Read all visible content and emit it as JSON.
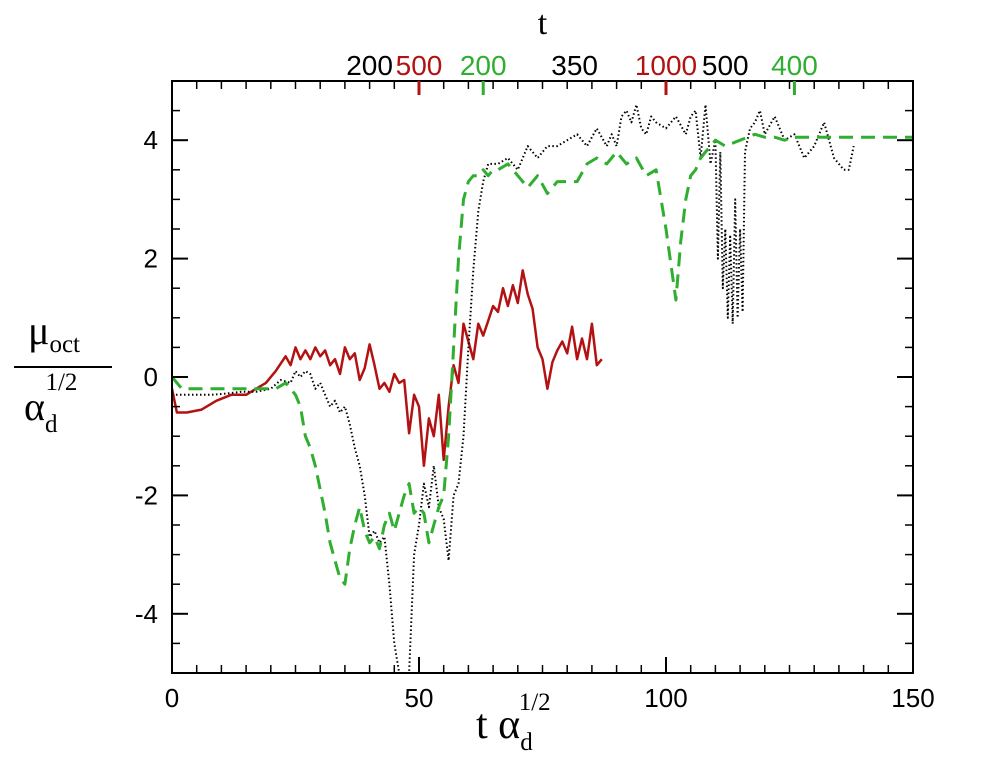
{
  "chart_data": {
    "type": "line",
    "title": "",
    "top_axis_label": "t",
    "xlabel_main": "t α",
    "xlabel_sub": "d",
    "xlabel_sup": "1/2",
    "ylabel_num_main": "μ",
    "ylabel_num_sub": "oct",
    "ylabel_den_main": "α",
    "ylabel_den_sub": "d",
    "ylabel_den_sup": "1/2",
    "xlim": [
      0,
      150
    ],
    "ylim": [
      -5,
      5
    ],
    "x_ticks": [
      0,
      50,
      100,
      150
    ],
    "y_ticks": [
      -4,
      -2,
      0,
      2,
      4
    ],
    "grid": false,
    "colors": {
      "black": "#000000",
      "red": "#b31212",
      "green": "#2fae2f"
    },
    "top_axis": [
      {
        "label": "200",
        "color": "black",
        "at": 40.0,
        "tick": false
      },
      {
        "label": "500",
        "color": "red",
        "at": 50.0,
        "tick": true
      },
      {
        "label": "200",
        "color": "green",
        "at": 63.0,
        "tick": true
      },
      {
        "label": "350",
        "color": "black",
        "at": 81.5,
        "tick": false
      },
      {
        "label": "1000",
        "color": "red",
        "at": 100.0,
        "tick": true
      },
      {
        "label": "500",
        "color": "black",
        "at": 112.0,
        "tick": false
      },
      {
        "label": "400",
        "color": "green",
        "at": 126.0,
        "tick": true
      }
    ],
    "series": [
      {
        "color": "red",
        "style": "solid",
        "x": [
          0,
          1,
          3,
          6,
          9,
          12,
          15,
          17,
          19,
          21,
          23,
          24,
          25,
          26,
          27,
          28,
          29,
          30,
          31,
          32,
          33,
          34,
          35,
          36,
          37,
          38,
          39,
          40,
          41,
          42,
          43,
          44,
          45,
          46,
          47,
          48,
          49,
          50,
          51,
          52,
          53,
          54,
          55,
          56,
          57,
          58,
          59,
          60,
          61,
          62,
          63,
          64,
          65,
          66,
          67,
          68,
          69,
          70,
          71,
          72,
          73,
          74,
          75,
          76,
          77,
          78,
          79,
          80,
          81,
          82,
          83,
          84,
          85,
          86,
          87
        ],
        "y": [
          -0.2,
          -0.6,
          -0.6,
          -0.55,
          -0.4,
          -0.3,
          -0.3,
          -0.2,
          -0.1,
          0.1,
          0.35,
          0.2,
          0.5,
          0.3,
          0.45,
          0.3,
          0.5,
          0.35,
          0.45,
          0.2,
          0.3,
          0.05,
          0.5,
          0.3,
          0.4,
          -0.05,
          0.15,
          0.55,
          0.2,
          -0.2,
          -0.1,
          -0.25,
          0.05,
          -0.1,
          -0.05,
          -0.95,
          -0.3,
          -0.5,
          -1.5,
          -0.7,
          -1.0,
          -0.3,
          -1.4,
          -0.5,
          0.2,
          -0.1,
          0.9,
          0.6,
          0.3,
          0.9,
          0.7,
          0.95,
          1.2,
          1.1,
          1.5,
          1.2,
          1.55,
          1.25,
          1.8,
          1.4,
          1.15,
          0.5,
          0.3,
          -0.2,
          0.25,
          0.45,
          0.6,
          0.4,
          0.85,
          0.3,
          0.65,
          0.3,
          0.9,
          0.2,
          0.3
        ]
      },
      {
        "color": "black",
        "style": "dotted",
        "x": [
          0,
          2,
          5,
          8,
          11,
          14,
          17,
          20,
          22,
          24,
          25,
          26,
          27,
          28,
          29,
          30,
          31,
          32,
          33,
          34,
          35,
          36,
          37,
          38,
          39,
          40,
          41,
          42,
          43,
          44,
          45,
          46,
          47,
          48,
          49,
          50,
          51,
          52,
          53,
          54,
          55,
          56,
          57,
          58,
          59,
          60,
          61,
          62,
          63,
          64,
          66,
          68,
          70,
          72,
          74,
          76,
          78,
          80,
          82,
          84,
          86,
          88,
          89,
          90,
          91,
          92,
          93,
          94,
          95,
          96,
          97,
          98,
          100,
          102,
          104,
          105,
          106,
          107,
          108,
          109,
          110,
          110.5,
          111,
          111.5,
          112,
          112.5,
          113,
          113.5,
          114,
          114.5,
          115,
          115.5,
          116,
          117,
          118,
          119,
          120,
          122,
          124,
          126,
          128,
          130,
          132,
          134,
          136,
          137,
          138
        ],
        "y": [
          -0.3,
          -0.3,
          -0.3,
          -0.3,
          -0.28,
          -0.25,
          -0.25,
          -0.2,
          -0.05,
          -0.1,
          0.1,
          0.0,
          0.1,
          0.05,
          -0.2,
          -0.1,
          -0.3,
          -0.5,
          -0.4,
          -0.6,
          -0.5,
          -0.8,
          -1.2,
          -1.5,
          -2.0,
          -2.7,
          -2.6,
          -2.8,
          -2.7,
          -3.5,
          -4.5,
          -5.0,
          -5.0,
          -5.0,
          -3.0,
          -2.5,
          -1.8,
          -2.2,
          -1.5,
          -2.2,
          -2.4,
          -3.1,
          -2.0,
          -1.8,
          -1.0,
          0.5,
          1.8,
          2.8,
          3.3,
          3.6,
          3.6,
          3.7,
          3.5,
          3.9,
          3.7,
          3.9,
          3.9,
          4.0,
          4.1,
          3.9,
          4.2,
          3.9,
          4.1,
          3.9,
          4.4,
          4.5,
          4.3,
          4.6,
          4.2,
          4.1,
          4.4,
          4.3,
          4.2,
          4.4,
          4.1,
          4.4,
          4.5,
          3.7,
          4.6,
          3.6,
          4.0,
          2.0,
          3.8,
          1.5,
          2.5,
          1.0,
          2.4,
          0.9,
          3.0,
          1.0,
          2.5,
          1.1,
          3.8,
          4.2,
          4.3,
          4.5,
          4.1,
          4.4,
          4.0,
          4.1,
          3.7,
          3.9,
          4.3,
          3.7,
          3.5,
          3.5,
          3.9
        ]
      },
      {
        "color": "green",
        "style": "dashed",
        "x": [
          0,
          2,
          5,
          9,
          13,
          17,
          21,
          23,
          24,
          25,
          26,
          27,
          28,
          29,
          30,
          31,
          32,
          33,
          34,
          35,
          36,
          37,
          38,
          39,
          40,
          41,
          42,
          43,
          44,
          45,
          46,
          47,
          48,
          49,
          50,
          51,
          52,
          53,
          54,
          55,
          56,
          57,
          58,
          59,
          60,
          61,
          62,
          63,
          64,
          65,
          66,
          68,
          70,
          72,
          74,
          76,
          78,
          80,
          82,
          84,
          86,
          88,
          90,
          92,
          94,
          96,
          98,
          100,
          102,
          103,
          104,
          105,
          106,
          107,
          108,
          109,
          110,
          112,
          115,
          118,
          120,
          122,
          124,
          126,
          130,
          135,
          140,
          145,
          150
        ],
        "y": [
          0.0,
          -0.2,
          -0.2,
          -0.2,
          -0.2,
          -0.2,
          -0.2,
          -0.1,
          -0.2,
          -0.3,
          -0.5,
          -1.0,
          -1.2,
          -1.5,
          -1.9,
          -2.3,
          -2.8,
          -3.1,
          -3.4,
          -3.5,
          -2.9,
          -2.5,
          -2.2,
          -2.6,
          -2.8,
          -2.7,
          -2.9,
          -2.5,
          -2.3,
          -2.6,
          -2.3,
          -2.0,
          -1.8,
          -2.3,
          -2.2,
          -2.3,
          -2.8,
          -2.5,
          -2.2,
          -2.0,
          -1.0,
          0.5,
          2.0,
          3.0,
          3.3,
          3.4,
          3.4,
          3.5,
          3.4,
          3.5,
          3.5,
          3.6,
          3.4,
          3.2,
          3.4,
          3.1,
          3.3,
          3.3,
          3.3,
          3.6,
          3.7,
          3.6,
          3.8,
          3.6,
          3.7,
          3.4,
          3.5,
          2.5,
          1.3,
          2.3,
          3.0,
          3.4,
          3.5,
          3.7,
          3.8,
          3.9,
          4.0,
          3.9,
          4.0,
          4.1,
          4.05,
          4.05,
          4.0,
          4.05,
          4.05,
          4.05,
          4.05,
          4.05,
          4.05
        ]
      }
    ]
  }
}
